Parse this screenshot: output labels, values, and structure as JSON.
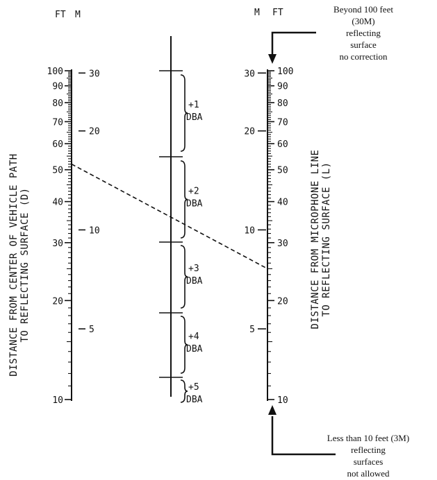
{
  "left_scale": {
    "unit_labels": [
      "FT",
      "M"
    ],
    "title_line1": "DISTANCE FROM CENTER OF VEHICLE PATH",
    "title_line2": "TO REFLECTING SURFACE (D)",
    "ft_ticks": [
      {
        "label": "100",
        "value": 100
      },
      {
        "label": "90",
        "value": 90
      },
      {
        "label": "80",
        "value": 80
      },
      {
        "label": "70",
        "value": 70
      },
      {
        "label": "60",
        "value": 60
      },
      {
        "label": "50",
        "value": 50
      },
      {
        "label": "40",
        "value": 40
      },
      {
        "label": "30",
        "value": 30
      },
      {
        "label": "20",
        "value": 20
      },
      {
        "label": "10",
        "value": 10
      }
    ],
    "m_ticks": [
      {
        "label": "30",
        "value": 30
      },
      {
        "label": "20",
        "value": 20
      },
      {
        "label": "10",
        "value": 10
      },
      {
        "label": "5",
        "value": 5
      }
    ]
  },
  "right_scale": {
    "unit_labels": [
      "M",
      "FT"
    ],
    "title_line1": "DISTANCE FROM MICROPHONE LINE",
    "title_line2": "TO REFLECTING SURFACE (L)",
    "ft_ticks": [
      {
        "label": "100",
        "value": 100
      },
      {
        "label": "90",
        "value": 90
      },
      {
        "label": "80",
        "value": 80
      },
      {
        "label": "70",
        "value": 70
      },
      {
        "label": "60",
        "value": 60
      },
      {
        "label": "50",
        "value": 50
      },
      {
        "label": "40",
        "value": 40
      },
      {
        "label": "30",
        "value": 30
      },
      {
        "label": "20",
        "value": 20
      },
      {
        "label": "10",
        "value": 10
      }
    ],
    "m_ticks": [
      {
        "label": "30",
        "value": 30
      },
      {
        "label": "20",
        "value": 20
      },
      {
        "label": "10",
        "value": 10
      },
      {
        "label": "5",
        "value": 5
      }
    ]
  },
  "corrections": [
    {
      "value": "+1",
      "unit": "DBA"
    },
    {
      "value": "+2",
      "unit": "DBA"
    },
    {
      "value": "+3",
      "unit": "DBA"
    },
    {
      "value": "+4",
      "unit": "DBA"
    },
    {
      "value": "+5",
      "unit": "DBA"
    }
  ],
  "note_top": [
    "Beyond 100 feet",
    "(30M)",
    "reflecting",
    "surface",
    "no correction"
  ],
  "note_bottom": [
    "Less than 10 feet (3M)",
    "reflecting",
    "surfaces",
    "not allowed"
  ],
  "example": {
    "left_ft": 52,
    "right_ft": 25
  }
}
